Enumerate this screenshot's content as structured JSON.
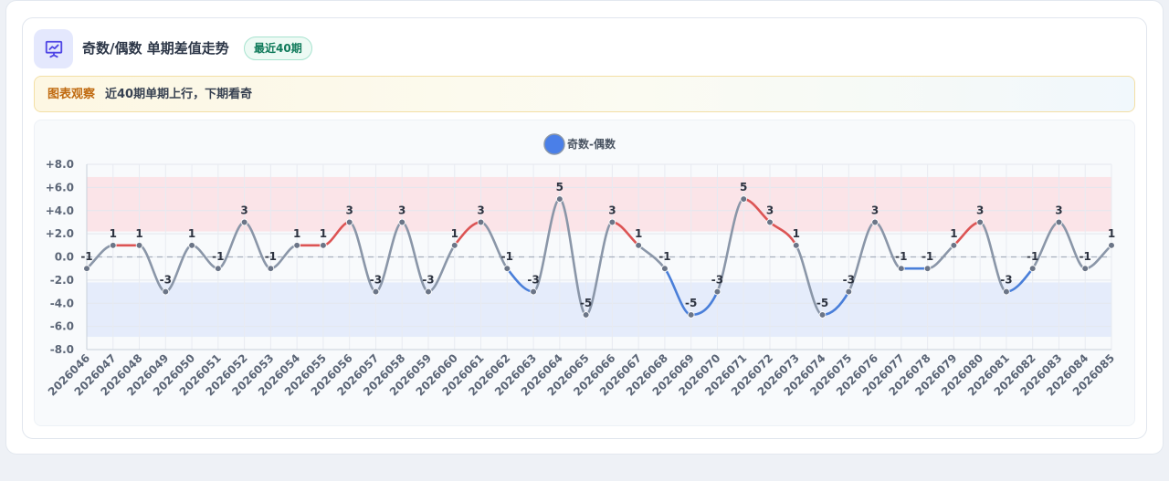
{
  "header": {
    "title": "奇数/偶数 单期差值走势",
    "badge": "最近40期",
    "icon": "presentation-chart-icon"
  },
  "note": {
    "tag": "图表观察",
    "text": "近40期单期上行，下期看奇"
  },
  "colors": {
    "main_line": "#8a96a8",
    "up_line": "#dc5454",
    "down_line": "#4a7fd9",
    "legend_dot": "#4a7fe8",
    "upper_band": "#fbe4e8",
    "lower_band": "#e5ecfb",
    "point": "#6b7587"
  },
  "chart_data": {
    "type": "line",
    "legend": [
      {
        "name": "奇数-偶数",
        "position": "top-center"
      }
    ],
    "y_ticks": [
      "+8.0",
      "+6.0",
      "+4.0",
      "+2.0",
      "0.0",
      "-2.0",
      "-4.0",
      "-6.0",
      "-8.0"
    ],
    "ylim": [
      -8,
      8
    ],
    "bands": [
      {
        "from": 2.2,
        "to": 6.9,
        "color": "upper_band"
      },
      {
        "from": -6.9,
        "to": -2.2,
        "color": "lower_band"
      }
    ],
    "zero_line": true,
    "categories": [
      "2026046",
      "2026047",
      "2026048",
      "2026049",
      "2026050",
      "2026051",
      "2026052",
      "2026053",
      "2026054",
      "2026055",
      "2026056",
      "2026057",
      "2026058",
      "2026059",
      "2026060",
      "2026061",
      "2026062",
      "2026063",
      "2026064",
      "2026065",
      "2026066",
      "2026067",
      "2026068",
      "2026069",
      "2026070",
      "2026071",
      "2026072",
      "2026073",
      "2026074",
      "2026075",
      "2026076",
      "2026077",
      "2026078",
      "2026079",
      "2026080",
      "2026081",
      "2026082",
      "2026083",
      "2026084",
      "2026085"
    ],
    "values": [
      -1,
      1,
      1,
      -3,
      1,
      -1,
      3,
      -1,
      1,
      1,
      3,
      -3,
      3,
      -3,
      1,
      3,
      -1,
      -3,
      5,
      -5,
      3,
      1,
      -1,
      -5,
      -3,
      5,
      3,
      1,
      -5,
      -3,
      3,
      -1,
      -1,
      1,
      3,
      -3,
      -1,
      3,
      -1,
      1
    ],
    "value_labels": [
      "-1",
      "1",
      "1",
      "-3",
      "1",
      "-1",
      "3",
      "-1",
      "1",
      "1",
      "3",
      "-3",
      "3",
      "-3",
      "1",
      "3",
      "-1",
      "-3",
      "5",
      "-5",
      "3",
      "1",
      "-1",
      "-5",
      "-3",
      "5",
      "3",
      "1",
      "-5",
      "-3",
      "3",
      "-1",
      "-1",
      "1",
      "3",
      "-3",
      "-1",
      "3",
      "-1",
      "1"
    ]
  }
}
